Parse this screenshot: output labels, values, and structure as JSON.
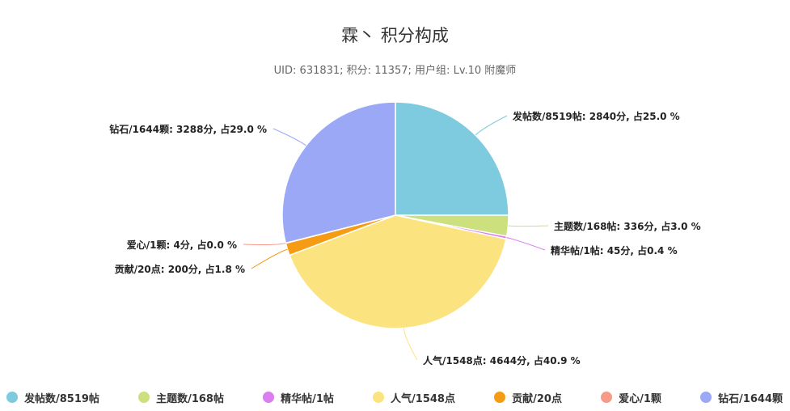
{
  "chart_data": {
    "type": "pie",
    "title": "霖丶 积分构成",
    "subtitle": "UID: 631831; 积分: 11357; 用户组: Lv.10 附魔师",
    "slices": [
      {
        "name": "发帖数/8519帖",
        "value": 2840,
        "label": "发帖数/8519帖: 2840分, 占25.0 %",
        "color": "#7ecbdf"
      },
      {
        "name": "主题数/168帖",
        "value": 336,
        "label": "主题数/168帖: 336分, 占3.0 %",
        "color": "#cce17e"
      },
      {
        "name": "精华帖/1帖",
        "value": 45,
        "label": "精华帖/1帖: 45分, 占0.4 %",
        "color": "#da7ef0"
      },
      {
        "name": "人气/1548点",
        "value": 4644,
        "label": "人气/1548点: 4644分, 占40.9 %",
        "color": "#fbe380"
      },
      {
        "name": "贡献/20点",
        "value": 200,
        "label": "贡献/20点: 200分, 占1.8 %",
        "color": "#f59b14"
      },
      {
        "name": "爱心/1颗",
        "value": 4,
        "label": "爱心/1颗: 4分, 占0.0 %",
        "color": "#f79a8a"
      },
      {
        "name": "钻石/1644颗",
        "value": 3288,
        "label": "钻石/1644颗: 3288分, 占29.0 %",
        "color": "#9aa8f5"
      }
    ],
    "legend_position": "bottom"
  }
}
